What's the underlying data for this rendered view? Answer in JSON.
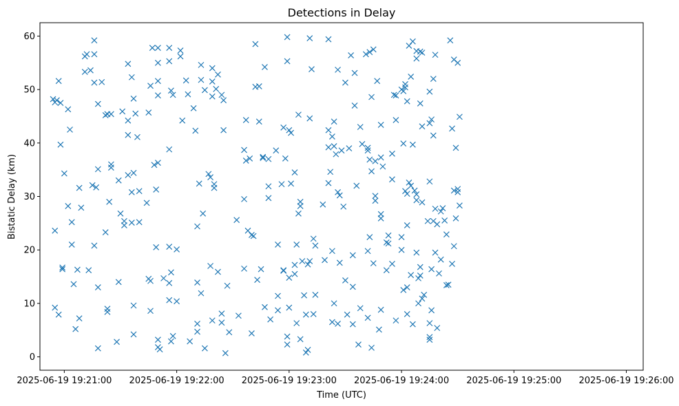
{
  "chart_data": {
    "type": "scatter",
    "title": "Detections in Delay",
    "xlabel": "Time (UTC)",
    "ylabel": "Bistatic Delay (km)",
    "x_tick_labels": [
      "2025-06-19 19:21:00",
      "2025-06-19 19:22:00",
      "2025-06-19 19:23:00",
      "2025-06-19 19:24:00",
      "2025-06-19 19:25:00",
      "2025-06-19 19:26:00"
    ],
    "x_tick_times": [
      "19:21:00",
      "19:22:00",
      "19:23:00",
      "19:24:00",
      "19:25:00",
      "19:26:00"
    ],
    "xlim": [
      "19:20:47",
      "19:26:09"
    ],
    "y_ticks": [
      0,
      10,
      20,
      30,
      40,
      50,
      60
    ],
    "ylim": [
      -2.5,
      62.5
    ],
    "grid": false,
    "marker": "x",
    "color": "#1f77b4",
    "points": [
      [
        "19:20:54",
        48.2
      ],
      [
        "19:20:55",
        47.6
      ],
      [
        "19:20:56",
        48.0
      ],
      [
        "19:20:57",
        51.6
      ],
      [
        "19:20:58",
        47.5
      ],
      [
        "19:20:58",
        39.7
      ],
      [
        "19:20:59",
        16.7
      ],
      [
        "19:20:59",
        16.4
      ],
      [
        "19:21:00",
        34.3
      ],
      [
        "19:21:02",
        46.3
      ],
      [
        "19:21:02",
        28.2
      ],
      [
        "19:21:03",
        42.5
      ],
      [
        "19:21:04",
        21.0
      ],
      [
        "19:21:04",
        25.2
      ],
      [
        "19:21:05",
        13.6
      ],
      [
        "19:21:06",
        5.2
      ],
      [
        "19:21:07",
        16.3
      ],
      [
        "19:21:08",
        31.6
      ],
      [
        "19:21:08",
        7.2
      ],
      [
        "19:21:09",
        27.9
      ],
      [
        "19:20:55",
        9.2
      ],
      [
        "19:20:55",
        23.6
      ],
      [
        "19:20:57",
        7.9
      ],
      [
        "19:21:11",
        53.3
      ],
      [
        "19:21:11",
        56.2
      ],
      [
        "19:21:12",
        56.6
      ],
      [
        "19:21:13",
        16.2
      ],
      [
        "19:21:14",
        53.6
      ],
      [
        "19:21:15",
        32.1
      ],
      [
        "19:21:16",
        59.2
      ],
      [
        "19:21:16",
        56.6
      ],
      [
        "19:21:16",
        51.3
      ],
      [
        "19:21:17",
        31.7
      ],
      [
        "19:21:16",
        20.8
      ],
      [
        "19:21:18",
        47.3
      ],
      [
        "19:21:18",
        35.1
      ],
      [
        "19:21:18",
        13.0
      ],
      [
        "19:21:18",
        1.6
      ],
      [
        "19:21:20",
        51.4
      ],
      [
        "19:21:22",
        45.2
      ],
      [
        "19:21:22",
        23.3
      ],
      [
        "19:21:23",
        45.4
      ],
      [
        "19:21:23",
        9.0
      ],
      [
        "19:21:23",
        8.4
      ],
      [
        "19:21:24",
        29.0
      ],
      [
        "19:21:25",
        35.4
      ],
      [
        "19:21:25",
        36.0
      ],
      [
        "19:21:25",
        45.4
      ],
      [
        "19:21:28",
        2.8
      ],
      [
        "19:21:29",
        33.0
      ],
      [
        "19:21:29",
        14.0
      ],
      [
        "19:21:30",
        26.8
      ],
      [
        "19:21:31",
        45.9
      ],
      [
        "19:21:32",
        24.6
      ],
      [
        "19:21:32",
        25.4
      ],
      [
        "19:21:34",
        54.8
      ],
      [
        "19:21:34",
        44.2
      ],
      [
        "19:21:34",
        41.5
      ],
      [
        "19:21:34",
        34.0
      ],
      [
        "19:21:36",
        52.3
      ],
      [
        "19:21:36",
        30.8
      ],
      [
        "19:21:36",
        25.1
      ],
      [
        "19:21:37",
        48.3
      ],
      [
        "19:21:37",
        34.4
      ],
      [
        "19:21:37",
        9.6
      ],
      [
        "19:21:37",
        4.2
      ],
      [
        "19:21:38",
        45.5
      ],
      [
        "19:21:39",
        41.1
      ],
      [
        "19:21:40",
        25.2
      ],
      [
        "19:21:40",
        31.0
      ],
      [
        "19:21:44",
        28.8
      ],
      [
        "19:21:45",
        45.7
      ],
      [
        "19:21:45",
        14.6
      ],
      [
        "19:21:46",
        14.2
      ],
      [
        "19:21:46",
        8.6
      ],
      [
        "19:21:46",
        50.7
      ],
      [
        "19:21:47",
        57.8
      ],
      [
        "19:21:48",
        35.9
      ],
      [
        "19:21:49",
        31.3
      ],
      [
        "19:21:49",
        20.5
      ],
      [
        "19:21:50",
        55.0
      ],
      [
        "19:21:50",
        51.6
      ],
      [
        "19:21:50",
        57.8
      ],
      [
        "19:21:50",
        48.9
      ],
      [
        "19:21:50",
        36.3
      ],
      [
        "19:21:50",
        3.2
      ],
      [
        "19:21:50",
        1.8
      ],
      [
        "19:21:51",
        1.4
      ],
      [
        "19:21:53",
        14.7
      ],
      [
        "19:21:56",
        55.3
      ],
      [
        "19:21:56",
        57.8
      ],
      [
        "19:21:57",
        49.8
      ],
      [
        "19:21:56",
        38.8
      ],
      [
        "19:21:56",
        20.6
      ],
      [
        "19:21:56",
        13.8
      ],
      [
        "19:21:56",
        10.6
      ],
      [
        "19:21:57",
        2.9
      ],
      [
        "19:21:57",
        15.8
      ],
      [
        "19:21:58",
        49.0
      ],
      [
        "19:21:58",
        3.9
      ],
      [
        "19:22:00",
        10.4
      ],
      [
        "19:22:00",
        20.1
      ],
      [
        "19:22:02",
        57.3
      ],
      [
        "19:22:02",
        56.2
      ],
      [
        "19:22:03",
        44.2
      ],
      [
        "19:22:05",
        51.7
      ],
      [
        "19:22:06",
        49.1
      ],
      [
        "19:22:07",
        2.9
      ],
      [
        "19:22:09",
        46.5
      ],
      [
        "19:22:10",
        42.3
      ],
      [
        "19:22:11",
        6.2
      ],
      [
        "19:22:11",
        4.7
      ],
      [
        "19:22:11",
        13.9
      ],
      [
        "19:22:11",
        24.4
      ],
      [
        "19:22:12",
        32.4
      ],
      [
        "19:22:13",
        54.6
      ],
      [
        "19:22:13",
        51.8
      ],
      [
        "19:22:13",
        11.9
      ],
      [
        "19:22:14",
        26.8
      ],
      [
        "19:22:15",
        1.6
      ],
      [
        "19:22:15",
        49.9
      ],
      [
        "19:22:17",
        34.2
      ],
      [
        "19:22:18",
        33.6
      ],
      [
        "19:22:18",
        17.0
      ],
      [
        "19:22:19",
        48.7
      ],
      [
        "19:22:19",
        54.0
      ],
      [
        "19:22:19",
        51.5
      ],
      [
        "19:22:19",
        6.8
      ],
      [
        "19:22:20",
        32.3
      ],
      [
        "19:22:20",
        31.6
      ],
      [
        "19:22:21",
        50.1
      ],
      [
        "19:22:22",
        52.8
      ],
      [
        "19:22:22",
        15.9
      ],
      [
        "19:22:24",
        8.1
      ],
      [
        "19:22:24",
        6.4
      ],
      [
        "19:22:24",
        49.0
      ],
      [
        "19:22:25",
        42.4
      ],
      [
        "19:22:25",
        48.0
      ],
      [
        "19:22:26",
        0.7
      ],
      [
        "19:22:27",
        13.3
      ],
      [
        "19:22:28",
        4.6
      ],
      [
        "19:22:32",
        25.6
      ],
      [
        "19:22:33",
        7.7
      ],
      [
        "19:22:36",
        38.7
      ],
      [
        "19:22:36",
        29.5
      ],
      [
        "19:22:36",
        16.5
      ],
      [
        "19:22:37",
        36.7
      ],
      [
        "19:22:37",
        44.3
      ],
      [
        "19:22:38",
        23.6
      ],
      [
        "19:22:39",
        37.1
      ],
      [
        "19:22:40",
        4.4
      ],
      [
        "19:22:40",
        22.8
      ],
      [
        "19:22:41",
        22.6
      ],
      [
        "19:22:42",
        58.5
      ],
      [
        "19:22:42",
        50.5
      ],
      [
        "19:22:43",
        14.4
      ],
      [
        "19:22:44",
        44.0
      ],
      [
        "19:22:44",
        50.6
      ],
      [
        "19:22:45",
        16.4
      ],
      [
        "19:22:46",
        37.4
      ],
      [
        "19:22:46",
        37.2
      ],
      [
        "19:22:47",
        9.3
      ],
      [
        "19:22:47",
        54.2
      ],
      [
        "19:22:49",
        37.0
      ],
      [
        "19:22:49",
        29.7
      ],
      [
        "19:22:49",
        31.9
      ],
      [
        "19:22:50",
        7.0
      ],
      [
        "19:22:53",
        38.6
      ],
      [
        "19:22:54",
        21.0
      ],
      [
        "19:22:54",
        8.7
      ],
      [
        "19:22:54",
        11.4
      ],
      [
        "19:22:56",
        32.3
      ],
      [
        "19:22:57",
        42.9
      ],
      [
        "19:22:57",
        16.2
      ],
      [
        "19:22:57",
        16.1
      ],
      [
        "19:22:58",
        37.1
      ],
      [
        "19:22:59",
        59.8
      ],
      [
        "19:22:59",
        55.3
      ],
      [
        "19:22:59",
        3.8
      ],
      [
        "19:22:59",
        2.3
      ],
      [
        "19:23:00",
        14.8
      ],
      [
        "19:23:00",
        9.2
      ],
      [
        "19:23:00",
        42.4
      ],
      [
        "19:23:01",
        41.9
      ],
      [
        "19:23:01",
        32.4
      ],
      [
        "19:23:03",
        15.5
      ],
      [
        "19:23:03",
        17.2
      ],
      [
        "19:23:03",
        34.5
      ],
      [
        "19:23:04",
        21.0
      ],
      [
        "19:23:04",
        6.3
      ],
      [
        "19:23:05",
        45.3
      ],
      [
        "19:23:05",
        26.8
      ],
      [
        "19:23:06",
        28.2
      ],
      [
        "19:23:06",
        29.0
      ],
      [
        "19:23:06",
        3.3
      ],
      [
        "19:23:07",
        17.9
      ],
      [
        "19:23:08",
        11.5
      ],
      [
        "19:23:09",
        0.8
      ],
      [
        "19:23:09",
        7.9
      ],
      [
        "19:23:10",
        17.3
      ],
      [
        "19:23:10",
        1.3
      ],
      [
        "19:23:11",
        44.6
      ],
      [
        "19:23:11",
        59.6
      ],
      [
        "19:23:11",
        17.9
      ],
      [
        "19:23:12",
        53.8
      ],
      [
        "19:23:13",
        8.0
      ],
      [
        "19:23:13",
        22.1
      ],
      [
        "19:23:14",
        20.8
      ],
      [
        "19:23:14",
        11.6
      ],
      [
        "19:23:18",
        28.5
      ],
      [
        "19:23:19",
        18.1
      ],
      [
        "19:23:21",
        42.4
      ],
      [
        "19:23:21",
        39.2
      ],
      [
        "19:23:21",
        32.5
      ],
      [
        "19:23:21",
        59.4
      ],
      [
        "19:23:22",
        34.6
      ],
      [
        "19:23:23",
        41.2
      ],
      [
        "19:23:24",
        44.0
      ],
      [
        "19:23:24",
        39.4
      ],
      [
        "19:23:23",
        19.8
      ],
      [
        "19:23:23",
        6.5
      ],
      [
        "19:23:24",
        10.0
      ],
      [
        "19:23:25",
        37.9
      ],
      [
        "19:23:26",
        30.8
      ],
      [
        "19:23:26",
        6.2
      ],
      [
        "19:23:26",
        53.7
      ],
      [
        "19:23:27",
        17.6
      ],
      [
        "19:23:27",
        30.2
      ],
      [
        "19:23:28",
        38.6
      ],
      [
        "19:23:29",
        28.1
      ],
      [
        "19:23:30",
        51.3
      ],
      [
        "19:23:30",
        14.3
      ],
      [
        "19:23:31",
        7.9
      ],
      [
        "19:23:32",
        39.0
      ],
      [
        "19:23:33",
        56.4
      ],
      [
        "19:23:34",
        13.1
      ],
      [
        "19:23:34",
        19.0
      ],
      [
        "19:23:34",
        6.1
      ],
      [
        "19:23:35",
        53.1
      ],
      [
        "19:23:35",
        47.0
      ],
      [
        "19:23:36",
        32.0
      ],
      [
        "19:23:37",
        2.3
      ],
      [
        "19:23:38",
        43.0
      ],
      [
        "19:23:38",
        9.1
      ],
      [
        "19:23:39",
        39.8
      ],
      [
        "19:23:41",
        56.6
      ],
      [
        "19:23:42",
        39.1
      ],
      [
        "19:23:42",
        38.6
      ],
      [
        "19:23:42",
        19.8
      ],
      [
        "19:23:42",
        7.3
      ],
      [
        "19:23:43",
        22.4
      ],
      [
        "19:23:43",
        36.9
      ],
      [
        "19:23:43",
        57.0
      ],
      [
        "19:23:44",
        48.6
      ],
      [
        "19:23:44",
        34.7
      ],
      [
        "19:23:44",
        1.7
      ],
      [
        "19:23:45",
        57.5
      ],
      [
        "19:23:45",
        17.5
      ],
      [
        "19:23:46",
        29.2
      ],
      [
        "19:23:46",
        30.1
      ],
      [
        "19:23:46",
        36.6
      ],
      [
        "19:23:47",
        51.6
      ],
      [
        "19:23:48",
        5.1
      ],
      [
        "19:23:49",
        37.3
      ],
      [
        "19:23:49",
        25.9
      ],
      [
        "19:23:49",
        26.7
      ],
      [
        "19:23:49",
        43.4
      ],
      [
        "19:23:49",
        8.8
      ],
      [
        "19:23:50",
        35.6
      ],
      [
        "19:23:52",
        16.2
      ],
      [
        "19:23:52",
        21.4
      ],
      [
        "19:23:53",
        21.2
      ],
      [
        "19:23:53",
        22.7
      ],
      [
        "19:23:55",
        38.0
      ],
      [
        "19:23:55",
        17.4
      ],
      [
        "19:23:55",
        33.2
      ],
      [
        "19:23:56",
        49.0
      ],
      [
        "19:23:57",
        48.9
      ],
      [
        "19:23:57",
        44.3
      ],
      [
        "19:23:57",
        6.8
      ],
      [
        "19:24:00",
        20.0
      ],
      [
        "19:24:00",
        22.4
      ],
      [
        "19:24:00",
        50.0
      ],
      [
        "19:24:01",
        49.7
      ],
      [
        "19:24:01",
        39.9
      ],
      [
        "19:24:01",
        12.5
      ],
      [
        "19:24:02",
        50.4
      ],
      [
        "19:24:02",
        51.0
      ],
      [
        "19:24:02",
        31.0
      ],
      [
        "19:24:03",
        30.5
      ],
      [
        "19:24:03",
        24.6
      ],
      [
        "19:24:03",
        47.8
      ],
      [
        "19:24:03",
        13.0
      ],
      [
        "19:24:03",
        8.0
      ],
      [
        "19:24:04",
        58.2
      ],
      [
        "19:24:04",
        32.6
      ],
      [
        "19:24:05",
        15.3
      ],
      [
        "19:24:05",
        52.4
      ],
      [
        "19:24:05",
        32.0
      ],
      [
        "19:24:06",
        6.1
      ],
      [
        "19:24:06",
        59.0
      ],
      [
        "19:24:06",
        39.7
      ],
      [
        "19:24:07",
        31.1
      ],
      [
        "19:24:08",
        57.2
      ],
      [
        "19:24:08",
        55.8
      ],
      [
        "19:24:08",
        30.4
      ],
      [
        "19:24:08",
        29.3
      ],
      [
        "19:24:08",
        19.5
      ],
      [
        "19:24:09",
        14.7
      ],
      [
        "19:24:09",
        10.0
      ],
      [
        "19:24:10",
        16.8
      ],
      [
        "19:24:10",
        47.4
      ],
      [
        "19:24:10",
        57.1
      ],
      [
        "19:24:10",
        15.2
      ],
      [
        "19:24:11",
        56.9
      ],
      [
        "19:24:11",
        43.1
      ],
      [
        "19:24:11",
        28.9
      ],
      [
        "19:24:11",
        10.9
      ],
      [
        "19:24:12",
        11.6
      ],
      [
        "19:24:14",
        25.4
      ],
      [
        "19:24:15",
        49.6
      ],
      [
        "19:24:15",
        43.7
      ],
      [
        "19:24:15",
        32.8
      ],
      [
        "19:24:15",
        6.3
      ],
      [
        "19:24:15",
        3.7
      ],
      [
        "19:24:15",
        3.2
      ],
      [
        "19:24:16",
        8.7
      ],
      [
        "19:24:16",
        16.4
      ],
      [
        "19:24:16",
        44.4
      ],
      [
        "19:24:17",
        41.4
      ],
      [
        "19:24:17",
        52.0
      ],
      [
        "19:24:17",
        25.4
      ],
      [
        "19:24:18",
        27.7
      ],
      [
        "19:24:18",
        19.5
      ],
      [
        "19:24:18",
        56.5
      ],
      [
        "19:24:19",
        5.4
      ],
      [
        "19:24:19",
        24.8
      ],
      [
        "19:24:20",
        15.6
      ],
      [
        "19:24:21",
        18.2
      ],
      [
        "19:24:21",
        27.2
      ],
      [
        "19:24:22",
        27.8
      ],
      [
        "19:24:23",
        25.5
      ],
      [
        "19:24:24",
        22.9
      ],
      [
        "19:24:24",
        13.4
      ],
      [
        "19:24:25",
        13.5
      ],
      [
        "19:24:26",
        59.2
      ],
      [
        "19:24:27",
        17.4
      ],
      [
        "19:24:27",
        42.7
      ],
      [
        "19:24:28",
        55.6
      ],
      [
        "19:24:28",
        31.1
      ],
      [
        "19:24:28",
        20.7
      ],
      [
        "19:24:29",
        25.9
      ],
      [
        "19:24:29",
        39.1
      ],
      [
        "19:24:30",
        55.0
      ],
      [
        "19:24:30",
        30.8
      ],
      [
        "19:24:30",
        31.4
      ],
      [
        "19:24:31",
        28.3
      ],
      [
        "19:24:31",
        44.9
      ]
    ]
  }
}
